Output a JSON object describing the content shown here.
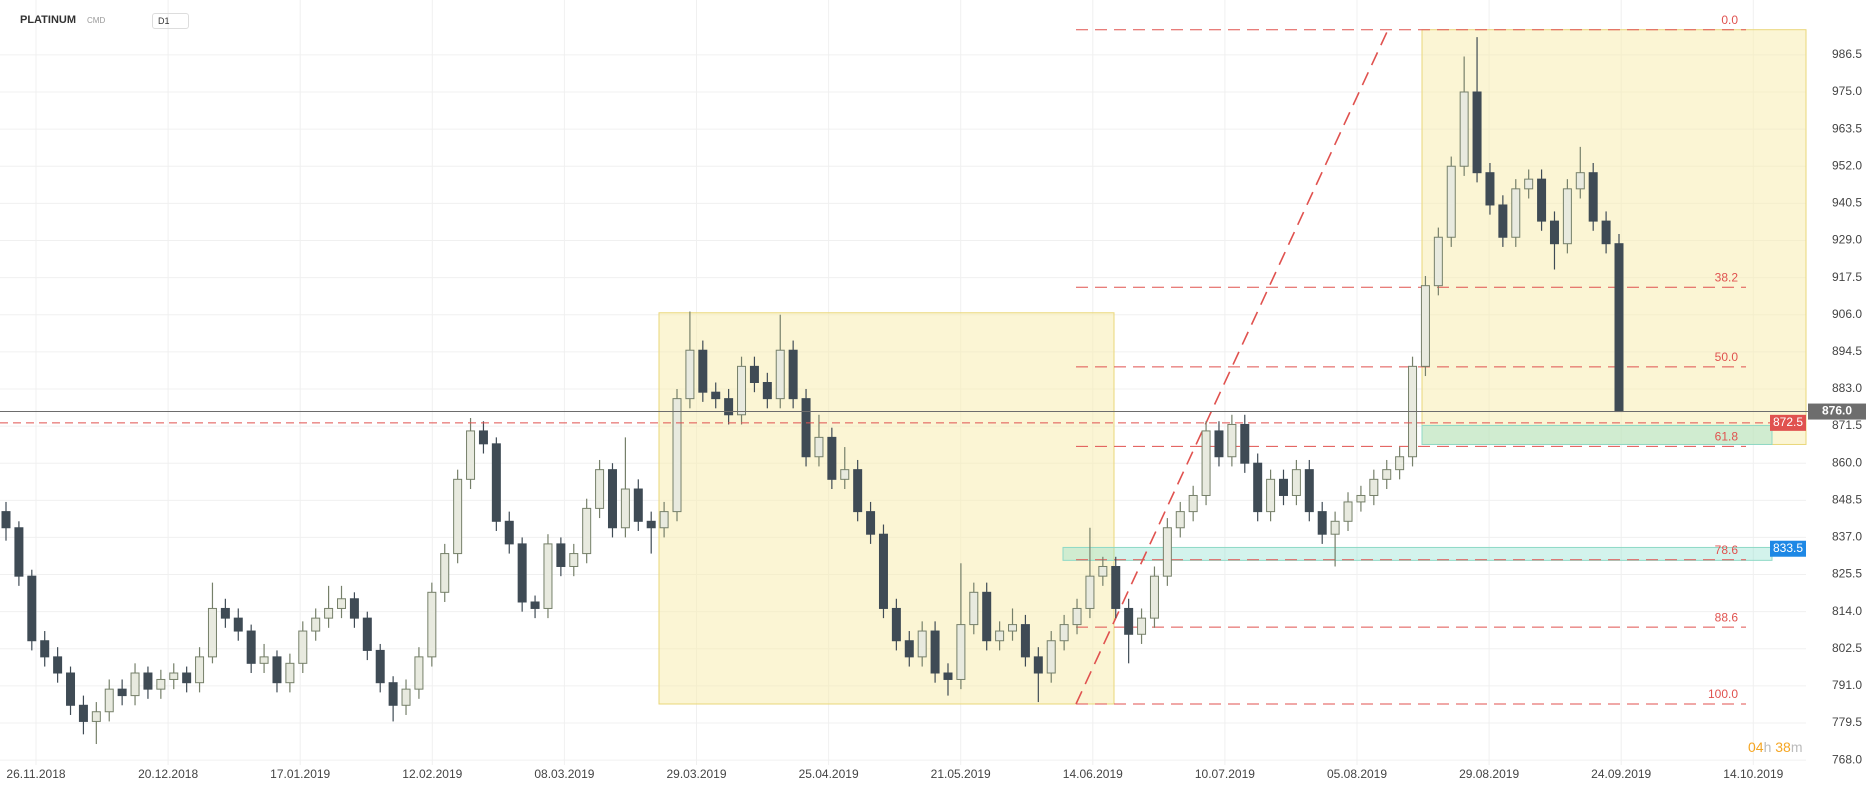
{
  "header": {
    "symbol": "PLATINUM",
    "market": "CMD",
    "interval": "D1"
  },
  "timer": {
    "hours": "04",
    "h": "h",
    "minutes": "38",
    "m": "m"
  },
  "chart_data": {
    "type": "candlestick",
    "up_color": "#76806a",
    "down_color": "#3f4b55",
    "ylim": [
      766.5,
      1003.5
    ],
    "yticks": [
      {
        "value": 768,
        "label": "768.0"
      },
      {
        "value": 779.5,
        "label": "779.5"
      },
      {
        "value": 791,
        "label": "791.0"
      },
      {
        "value": 802.5,
        "label": "802.5"
      },
      {
        "value": 814,
        "label": "814.0"
      },
      {
        "value": 825.5,
        "label": "825.5"
      },
      {
        "value": 837,
        "label": "837.0"
      },
      {
        "value": 848.5,
        "label": "848.5"
      },
      {
        "value": 860,
        "label": "860.0"
      },
      {
        "value": 871.5,
        "label": "871.5"
      },
      {
        "value": 883,
        "label": "883.0"
      },
      {
        "value": 894.5,
        "label": "894.5"
      },
      {
        "value": 906,
        "label": "906.0"
      },
      {
        "value": 917.5,
        "label": "917.5"
      },
      {
        "value": 929,
        "label": "929.0"
      },
      {
        "value": 940.5,
        "label": "940.5"
      },
      {
        "value": 952,
        "label": "952.0"
      },
      {
        "value": 963.5,
        "label": "963.5"
      },
      {
        "value": 975,
        "label": "975.0"
      },
      {
        "value": 986.5,
        "label": "986.5"
      }
    ],
    "xticks": [
      "26.11.2018",
      "20.12.2018",
      "17.01.2019",
      "12.02.2019",
      "08.03.2019",
      "29.03.2019",
      "25.04.2019",
      "21.05.2019",
      "14.06.2019",
      "10.07.2019",
      "05.08.2019",
      "29.08.2019",
      "24.09.2019",
      "14.10.2019"
    ],
    "grid": true,
    "candles": [
      [
        845,
        848,
        836,
        840
      ],
      [
        840,
        842,
        822,
        825
      ],
      [
        825,
        827,
        802,
        805
      ],
      [
        805,
        808,
        797,
        800
      ],
      [
        800,
        803,
        792,
        795
      ],
      [
        795,
        797,
        782,
        785
      ],
      [
        785,
        788,
        776,
        780
      ],
      [
        780,
        786,
        773,
        783
      ],
      [
        783,
        793,
        780,
        790
      ],
      [
        790,
        793,
        785,
        788
      ],
      [
        788,
        798,
        785,
        795
      ],
      [
        795,
        797,
        787,
        790
      ],
      [
        790,
        796,
        787,
        793
      ],
      [
        793,
        798,
        790,
        795
      ],
      [
        795,
        797,
        789,
        792
      ],
      [
        792,
        803,
        789,
        800
      ],
      [
        800,
        823,
        798,
        815
      ],
      [
        815,
        818,
        809,
        812
      ],
      [
        812,
        815,
        805,
        808
      ],
      [
        808,
        810,
        795,
        798
      ],
      [
        798,
        804,
        795,
        800
      ],
      [
        800,
        802,
        789,
        792
      ],
      [
        792,
        801,
        789,
        798
      ],
      [
        798,
        811,
        795,
        808
      ],
      [
        808,
        815,
        805,
        812
      ],
      [
        812,
        822,
        809,
        815
      ],
      [
        815,
        822,
        812,
        818
      ],
      [
        818,
        820,
        809,
        812
      ],
      [
        812,
        814,
        799,
        802
      ],
      [
        802,
        804,
        789,
        792
      ],
      [
        792,
        794,
        780,
        785
      ],
      [
        785,
        793,
        782,
        790
      ],
      [
        790,
        803,
        787,
        800
      ],
      [
        800,
        823,
        797,
        820
      ],
      [
        820,
        835,
        817,
        832
      ],
      [
        832,
        858,
        829,
        855
      ],
      [
        855,
        874,
        852,
        870
      ],
      [
        870,
        873,
        863,
        866
      ],
      [
        866,
        868,
        839,
        842
      ],
      [
        842,
        845,
        832,
        835
      ],
      [
        835,
        837,
        814,
        817
      ],
      [
        817,
        819,
        812,
        815
      ],
      [
        815,
        838,
        812,
        835
      ],
      [
        835,
        837,
        825,
        828
      ],
      [
        828,
        835,
        825,
        832
      ],
      [
        832,
        849,
        829,
        846
      ],
      [
        846,
        861,
        843,
        858
      ],
      [
        858,
        860,
        837,
        840
      ],
      [
        840,
        868,
        837,
        852
      ],
      [
        852,
        855,
        839,
        842
      ],
      [
        842,
        845,
        832,
        840
      ],
      [
        840,
        848,
        837,
        845
      ],
      [
        845,
        883,
        842,
        880
      ],
      [
        880,
        907,
        877,
        895
      ],
      [
        895,
        898,
        879,
        882
      ],
      [
        882,
        885,
        877,
        880
      ],
      [
        880,
        883,
        872,
        875
      ],
      [
        875,
        893,
        872,
        890
      ],
      [
        890,
        893,
        882,
        885
      ],
      [
        885,
        888,
        877,
        880
      ],
      [
        880,
        906,
        877,
        895
      ],
      [
        895,
        898,
        877,
        880
      ],
      [
        880,
        883,
        859,
        862
      ],
      [
        862,
        875,
        859,
        868
      ],
      [
        868,
        871,
        852,
        855
      ],
      [
        855,
        865,
        852,
        858
      ],
      [
        858,
        861,
        842,
        845
      ],
      [
        845,
        848,
        835,
        838
      ],
      [
        838,
        841,
        812,
        815
      ],
      [
        815,
        818,
        802,
        805
      ],
      [
        805,
        808,
        797,
        800
      ],
      [
        800,
        811,
        797,
        808
      ],
      [
        808,
        811,
        792,
        795
      ],
      [
        795,
        798,
        788,
        793
      ],
      [
        793,
        829,
        790,
        810
      ],
      [
        810,
        823,
        807,
        820
      ],
      [
        820,
        823,
        802,
        805
      ],
      [
        805,
        811,
        802,
        808
      ],
      [
        808,
        815,
        805,
        810
      ],
      [
        810,
        813,
        797,
        800
      ],
      [
        800,
        803,
        786,
        795
      ],
      [
        795,
        808,
        792,
        805
      ],
      [
        805,
        813,
        802,
        810
      ],
      [
        810,
        818,
        807,
        815
      ],
      [
        815,
        840,
        812,
        825
      ],
      [
        825,
        831,
        822,
        828
      ],
      [
        828,
        831,
        812,
        815
      ],
      [
        815,
        818,
        798,
        807
      ],
      [
        807,
        815,
        804,
        812
      ],
      [
        812,
        828,
        809,
        825
      ],
      [
        825,
        843,
        822,
        840
      ],
      [
        840,
        848,
        837,
        845
      ],
      [
        845,
        853,
        842,
        850
      ],
      [
        850,
        873,
        847,
        870
      ],
      [
        870,
        873,
        859,
        862
      ],
      [
        862,
        875,
        859,
        872
      ],
      [
        872,
        875,
        857,
        860
      ],
      [
        860,
        863,
        842,
        845
      ],
      [
        845,
        858,
        842,
        855
      ],
      [
        855,
        858,
        847,
        850
      ],
      [
        850,
        861,
        847,
        858
      ],
      [
        858,
        861,
        842,
        845
      ],
      [
        845,
        848,
        835,
        838
      ],
      [
        838,
        845,
        828,
        842
      ],
      [
        842,
        851,
        839,
        848
      ],
      [
        848,
        853,
        845,
        850
      ],
      [
        850,
        858,
        847,
        855
      ],
      [
        855,
        861,
        852,
        858
      ],
      [
        858,
        865,
        855,
        862
      ],
      [
        862,
        893,
        859,
        890
      ],
      [
        890,
        918,
        887,
        915
      ],
      [
        915,
        933,
        912,
        930
      ],
      [
        930,
        955,
        927,
        952
      ],
      [
        952,
        986,
        949,
        975
      ],
      [
        975,
        992,
        947,
        950
      ],
      [
        950,
        953,
        937,
        940
      ],
      [
        940,
        943,
        927,
        930
      ],
      [
        930,
        948,
        927,
        945
      ],
      [
        945,
        951,
        942,
        948
      ],
      [
        948,
        951,
        932,
        935
      ],
      [
        935,
        938,
        920,
        928
      ],
      [
        928,
        948,
        925,
        945
      ],
      [
        945,
        958,
        942,
        950
      ],
      [
        950,
        953,
        932,
        935
      ],
      [
        935,
        938,
        925,
        928
      ],
      [
        928,
        931,
        876,
        876
      ]
    ],
    "fibonacci": {
      "high": 994.3,
      "low": 785.4,
      "color": "#e0524f",
      "levels": [
        {
          "value": 0,
          "label": "0.0"
        },
        38.2,
        {
          "value": 50,
          "label": "50.0"
        },
        61.8,
        78.6,
        88.6,
        {
          "value": 100,
          "label": "100.0"
        }
      ]
    },
    "boxes": [
      [
        785.4,
        906.6
      ],
      [
        865.8,
        994.3
      ]
    ],
    "bands": [
      [
        829.9,
        833.9
      ],
      [
        865.8,
        871.7
      ]
    ],
    "price_lines": [
      {
        "value": 876,
        "label": "876.0",
        "color": "#6d6d6d"
      },
      {
        "value": 872.5,
        "label": "872.5",
        "color": "#e0524f"
      },
      {
        "value": 833.5,
        "label": "833.5",
        "color": "#1e88e5"
      }
    ]
  }
}
